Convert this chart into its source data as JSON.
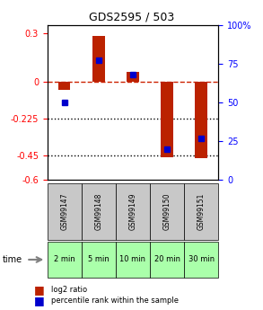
{
  "title": "GDS2595 / 503",
  "samples": [
    "GSM99147",
    "GSM99148",
    "GSM99149",
    "GSM99150",
    "GSM99151"
  ],
  "time_labels": [
    "2 min",
    "5 min",
    "10 min",
    "20 min",
    "30 min"
  ],
  "log2_ratio": [
    -0.05,
    0.28,
    0.06,
    -0.46,
    -0.47
  ],
  "percentile_rank": [
    50,
    77,
    68,
    20,
    27
  ],
  "ylim_left": [
    -0.6,
    0.35
  ],
  "ylim_right": [
    0,
    100
  ],
  "left_ticks": [
    0.3,
    0,
    -0.225,
    -0.45,
    -0.6
  ],
  "right_ticks": [
    100,
    75,
    50,
    25,
    0
  ],
  "bar_color": "#bb2200",
  "dot_color": "#0000cc",
  "background_color": "#ffffff",
  "plot_bg": "#ffffff",
  "dashed_color": "#cc2200",
  "legend_items": [
    "log2 ratio",
    "percentile rank within the sample"
  ]
}
